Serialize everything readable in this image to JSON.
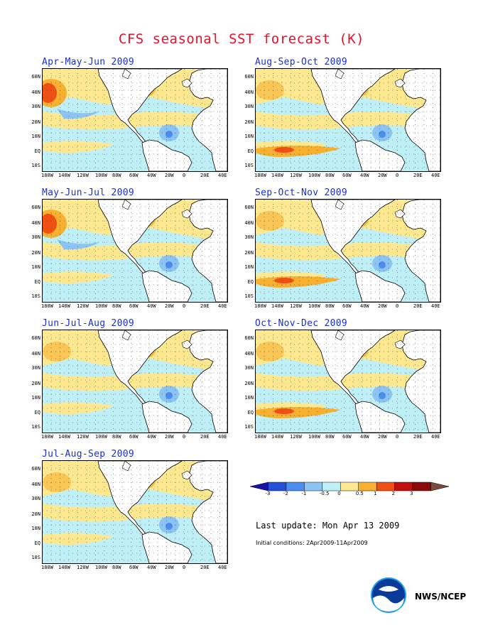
{
  "title": "CFS seasonal SST forecast (K)",
  "panels": [
    {
      "label": "Apr-May-Jun 2009"
    },
    {
      "label": "Aug-Sep-Oct 2009"
    },
    {
      "label": "May-Jun-Jul 2009"
    },
    {
      "label": "Sep-Oct-Nov 2009"
    },
    {
      "label": "Jun-Jul-Aug 2009"
    },
    {
      "label": "Oct-Nov-Dec 2009"
    },
    {
      "label": "Jul-Aug-Sep 2009"
    }
  ],
  "lat_labels": [
    "60N",
    "40N",
    "30N",
    "20N",
    "10N",
    "EQ",
    "10S"
  ],
  "lon_labels": [
    "180W",
    "140W",
    "120W",
    "100W",
    "80W",
    "60W",
    "40W",
    "20W",
    "0",
    "20E",
    "40E"
  ],
  "colorbar": {
    "labels": [
      "-3",
      "-2",
      "-1",
      "-0.5",
      "0",
      "0.5",
      "1",
      "2",
      "3"
    ],
    "colors": [
      "#1c10a8",
      "#2350d8",
      "#4a8cf0",
      "#8cc4f4",
      "#bff0f8",
      "#fde890",
      "#f8b030",
      "#f05014",
      "#c01010",
      "#8c0a0a",
      "#7a4a3a"
    ]
  },
  "last_update": "Last update: Mon Apr 13 2009",
  "initial_conditions": "Initial conditions: 2Apr2009-11Apr2009",
  "agency": "NWS/NCEP"
}
